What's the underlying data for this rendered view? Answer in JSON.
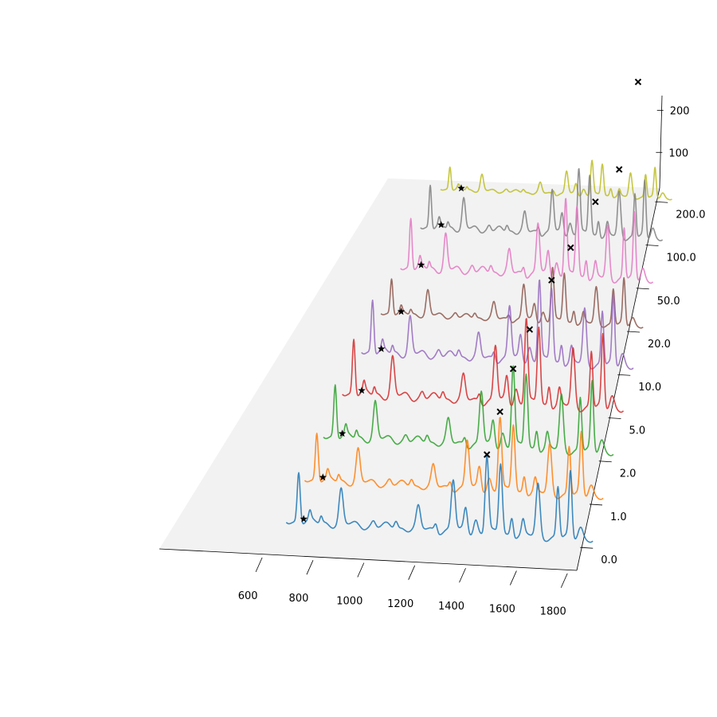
{
  "chart_data": {
    "type": "line",
    "subtype": "3d-waterfall",
    "title": "",
    "xlabel": "",
    "ylabel": "",
    "zlabel": "",
    "x_ticks": [
      "600",
      "800",
      "1000",
      "1200",
      "1400",
      "1600",
      "1800"
    ],
    "y_ticks": [
      "0.0",
      "1.0",
      "2.0",
      "5.0",
      "10.0",
      "20.0",
      "50.0",
      "100.0",
      "200.0"
    ],
    "z_ticks": [
      "100",
      "200"
    ],
    "xlim": [
      500,
      1900
    ],
    "zlim": [
      0,
      220
    ],
    "grid": false,
    "legend": "none",
    "peaks": [
      {
        "c": 700,
        "h": 75,
        "w": 6
      },
      {
        "c": 745,
        "h": 12,
        "w": 5
      },
      {
        "c": 790,
        "h": 10,
        "w": 5
      },
      {
        "c": 870,
        "h": 50,
        "w": 8
      },
      {
        "c": 1000,
        "h": 8,
        "w": 8
      },
      {
        "c": 1090,
        "h": 12,
        "w": 7
      },
      {
        "c": 1180,
        "h": 30,
        "w": 8
      },
      {
        "c": 1250,
        "h": 12,
        "w": 6
      },
      {
        "c": 1320,
        "h": 75,
        "w": 8
      },
      {
        "c": 1370,
        "h": 35,
        "w": 7
      },
      {
        "c": 1410,
        "h": 20,
        "w": 8
      },
      {
        "c": 1455,
        "h": 115,
        "w": 7
      },
      {
        "c": 1510,
        "h": 105,
        "w": 7
      },
      {
        "c": 1555,
        "h": 28,
        "w": 6
      },
      {
        "c": 1600,
        "h": 20,
        "w": 6
      },
      {
        "c": 1660,
        "h": 75,
        "w": 8
      },
      {
        "c": 1740,
        "h": 75,
        "w": 6
      },
      {
        "c": 1790,
        "h": 95,
        "w": 6
      },
      {
        "c": 1830,
        "h": 20,
        "w": 10
      }
    ],
    "series": [
      {
        "name": "0.0",
        "depth": 0.0,
        "color": "#1f77b4",
        "star_x": 720,
        "cross_x": 1455,
        "cross_z": 130,
        "scale": 1.0
      },
      {
        "name": "1.0",
        "depth": 1.0,
        "color": "#ff7f0e",
        "star_x": 725,
        "cross_x": 1455,
        "cross_z": 130,
        "scale": 0.95
      },
      {
        "name": "2.0",
        "depth": 2.0,
        "color": "#2ca02c",
        "star_x": 730,
        "cross_x": 1455,
        "cross_z": 130,
        "scale": 1.05
      },
      {
        "name": "5.0",
        "depth": 5.0,
        "color": "#d62728",
        "star_x": 735,
        "cross_x": 1470,
        "cross_z": 125,
        "scale": 1.1
      },
      {
        "name": "10.0",
        "depth": 10.0,
        "color": "#9467bd",
        "star_x": 740,
        "cross_x": 1510,
        "cross_z": 135,
        "scale": 1.05
      },
      {
        "name": "20.0",
        "depth": 20.0,
        "color": "#8c564b",
        "star_x": 745,
        "cross_x": 1540,
        "cross_z": 120,
        "scale": 0.7
      },
      {
        "name": "50.0",
        "depth": 50.0,
        "color": "#e377c2",
        "star_x": 750,
        "cross_x": 1600,
        "cross_z": 125,
        "scale": 1.0
      },
      {
        "name": "100.0",
        "depth": 100.0,
        "color": "#7f7f7f",
        "star_x": 755,
        "cross_x": 1660,
        "cross_z": 110,
        "scale": 0.85
      },
      {
        "name": "200.0",
        "depth": 200.0,
        "color": "#bcbd22",
        "star_x": 760,
        "cross_x": 1700,
        "cross_z": 110,
        "scale": 0.45
      }
    ]
  }
}
